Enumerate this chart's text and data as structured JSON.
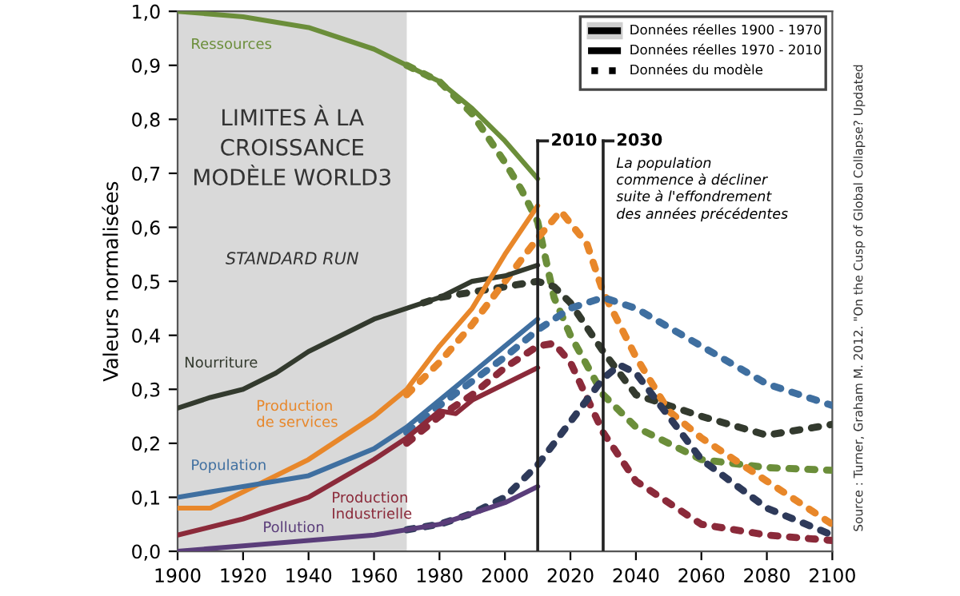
{
  "chart_data": {
    "type": "line",
    "title": "LIMITES À LA\nCROISSANCE\nMODÈLE WORLD3",
    "subtitle": "STANDARD RUN",
    "ylabel": "Valeurs normalisées",
    "xlim": [
      1900,
      2100
    ],
    "xticks": [
      1900,
      1920,
      1940,
      1960,
      1980,
      2000,
      2020,
      2040,
      2060,
      2080,
      2100
    ],
    "ylim": [
      0,
      1
    ],
    "yticks": [
      {
        "value": 0,
        "label": "0,0"
      },
      {
        "value": 0.1,
        "label": "0,1"
      },
      {
        "value": 0.2,
        "label": "0,2"
      },
      {
        "value": 0.3,
        "label": "0,3"
      },
      {
        "value": 0.4,
        "label": "0,4"
      },
      {
        "value": 0.5,
        "label": "0,5"
      },
      {
        "value": 0.6,
        "label": "0,6"
      },
      {
        "value": 0.7,
        "label": "0,7"
      },
      {
        "value": 0.8,
        "label": "0,8"
      },
      {
        "value": 0.9,
        "label": "0,9"
      },
      {
        "value": 1.0,
        "label": "1,0"
      }
    ],
    "grid": false,
    "series": [
      {
        "name": "Ressources",
        "color": "#6b8e3a",
        "line_style": "solid",
        "x": [
          1900,
          1920,
          1940,
          1960,
          1970,
          1980,
          1990,
          2000,
          2010
        ],
        "values": [
          1.0,
          0.99,
          0.97,
          0.93,
          0.9,
          0.87,
          0.82,
          0.76,
          0.69
        ]
      },
      {
        "name": "Nourriture",
        "color": "#333a2e",
        "line_style": "solid",
        "x": [
          1900,
          1910,
          1920,
          1930,
          1940,
          1950,
          1960,
          1970,
          1980,
          1990,
          2000,
          2010
        ],
        "values": [
          0.265,
          0.285,
          0.3,
          0.33,
          0.37,
          0.4,
          0.43,
          0.45,
          0.47,
          0.5,
          0.51,
          0.53
        ]
      },
      {
        "name": "Production\nde services",
        "color": "#e8872a",
        "line_style": "solid",
        "x": [
          1900,
          1910,
          1920,
          1940,
          1960,
          1970,
          1980,
          1990,
          2000,
          2010
        ],
        "values": [
          0.08,
          0.08,
          0.11,
          0.17,
          0.25,
          0.3,
          0.38,
          0.45,
          0.55,
          0.64
        ]
      },
      {
        "name": "Population",
        "color": "#3f6fa0",
        "line_style": "solid",
        "x": [
          1900,
          1920,
          1940,
          1960,
          1970,
          1980,
          1990,
          2000,
          2010
        ],
        "values": [
          0.1,
          0.12,
          0.14,
          0.19,
          0.23,
          0.28,
          0.33,
          0.38,
          0.43
        ]
      },
      {
        "name": "Production\nIndustrielle",
        "color": "#8b2a3a",
        "line_style": "solid",
        "x": [
          1900,
          1920,
          1940,
          1960,
          1970,
          1980,
          1985,
          1990,
          2000,
          2010
        ],
        "values": [
          0.03,
          0.06,
          0.1,
          0.17,
          0.21,
          0.26,
          0.255,
          0.28,
          0.31,
          0.34
        ]
      },
      {
        "name": "Pollution",
        "color": "#5a3d7a",
        "line_style": "solid",
        "x": [
          1900,
          1920,
          1940,
          1960,
          1970,
          1980,
          1990,
          2000,
          2010
        ],
        "values": [
          0.0,
          0.01,
          0.02,
          0.03,
          0.04,
          0.05,
          0.07,
          0.09,
          0.12
        ]
      },
      {
        "color": "#6b8e3a",
        "line_style": "dotted",
        "x": [
          1970,
          1980,
          1990,
          2000,
          2005,
          2010,
          2015,
          2020,
          2030,
          2040,
          2060,
          2080,
          2100
        ],
        "values": [
          0.9,
          0.87,
          0.81,
          0.72,
          0.67,
          0.61,
          0.47,
          0.4,
          0.29,
          0.23,
          0.17,
          0.155,
          0.15
        ]
      },
      {
        "color": "#333a2e",
        "line_style": "dotted",
        "x": [
          1975,
          1980,
          1990,
          2000,
          2010,
          2015,
          2020,
          2030,
          2040,
          2060,
          2080,
          2100
        ],
        "values": [
          0.46,
          0.47,
          0.48,
          0.49,
          0.5,
          0.49,
          0.46,
          0.37,
          0.29,
          0.25,
          0.215,
          0.235
        ]
      },
      {
        "color": "#e8872a",
        "line_style": "dotted",
        "x": [
          1970,
          1980,
          1990,
          2000,
          2010,
          2017,
          2025,
          2030,
          2040,
          2050,
          2060,
          2080,
          2100
        ],
        "values": [
          0.29,
          0.35,
          0.42,
          0.5,
          0.58,
          0.63,
          0.57,
          0.48,
          0.36,
          0.26,
          0.21,
          0.13,
          0.05
        ]
      },
      {
        "color": "#3f6fa0",
        "line_style": "dotted",
        "x": [
          1970,
          1980,
          2000,
          2010,
          2020,
          2030,
          2040,
          2060,
          2080,
          2100
        ],
        "values": [
          0.22,
          0.27,
          0.36,
          0.41,
          0.45,
          0.47,
          0.45,
          0.38,
          0.31,
          0.27
        ]
      },
      {
        "color": "#8b2a3a",
        "line_style": "dotted",
        "x": [
          1970,
          1980,
          1990,
          2000,
          2010,
          2015,
          2020,
          2030,
          2040,
          2060,
          2080,
          2100
        ],
        "values": [
          0.2,
          0.25,
          0.29,
          0.34,
          0.38,
          0.385,
          0.35,
          0.22,
          0.13,
          0.05,
          0.03,
          0.02
        ]
      },
      {
        "color": "#2e3a5a",
        "line_style": "dotted",
        "x": [
          1970,
          1980,
          1990,
          2000,
          2010,
          2020,
          2030,
          2035,
          2040,
          2060,
          2080,
          2100
        ],
        "values": [
          0.04,
          0.05,
          0.07,
          0.1,
          0.16,
          0.24,
          0.32,
          0.345,
          0.33,
          0.17,
          0.08,
          0.03
        ]
      }
    ],
    "bands": [
      {
        "axis": "x",
        "from": 1900,
        "to": 1970,
        "color": "#d9d9d9"
      }
    ],
    "ref_lines": [
      {
        "axis": "x",
        "value": 2010,
        "label": "2010",
        "color": "#222222"
      },
      {
        "axis": "x",
        "value": 2030,
        "label": "2030",
        "color": "#222222"
      }
    ],
    "annotations": [
      "Données réelles 1900 - 1970",
      "Données réelles 1970 - 2010",
      "Données du modèle",
      "La population\ncommence à décliner\nsuite à l'effondrement\ndes années précédentes",
      "Source : Turner, Graham M. 2012. \"On the Cusp of Global Collapse? Updated"
    ]
  }
}
